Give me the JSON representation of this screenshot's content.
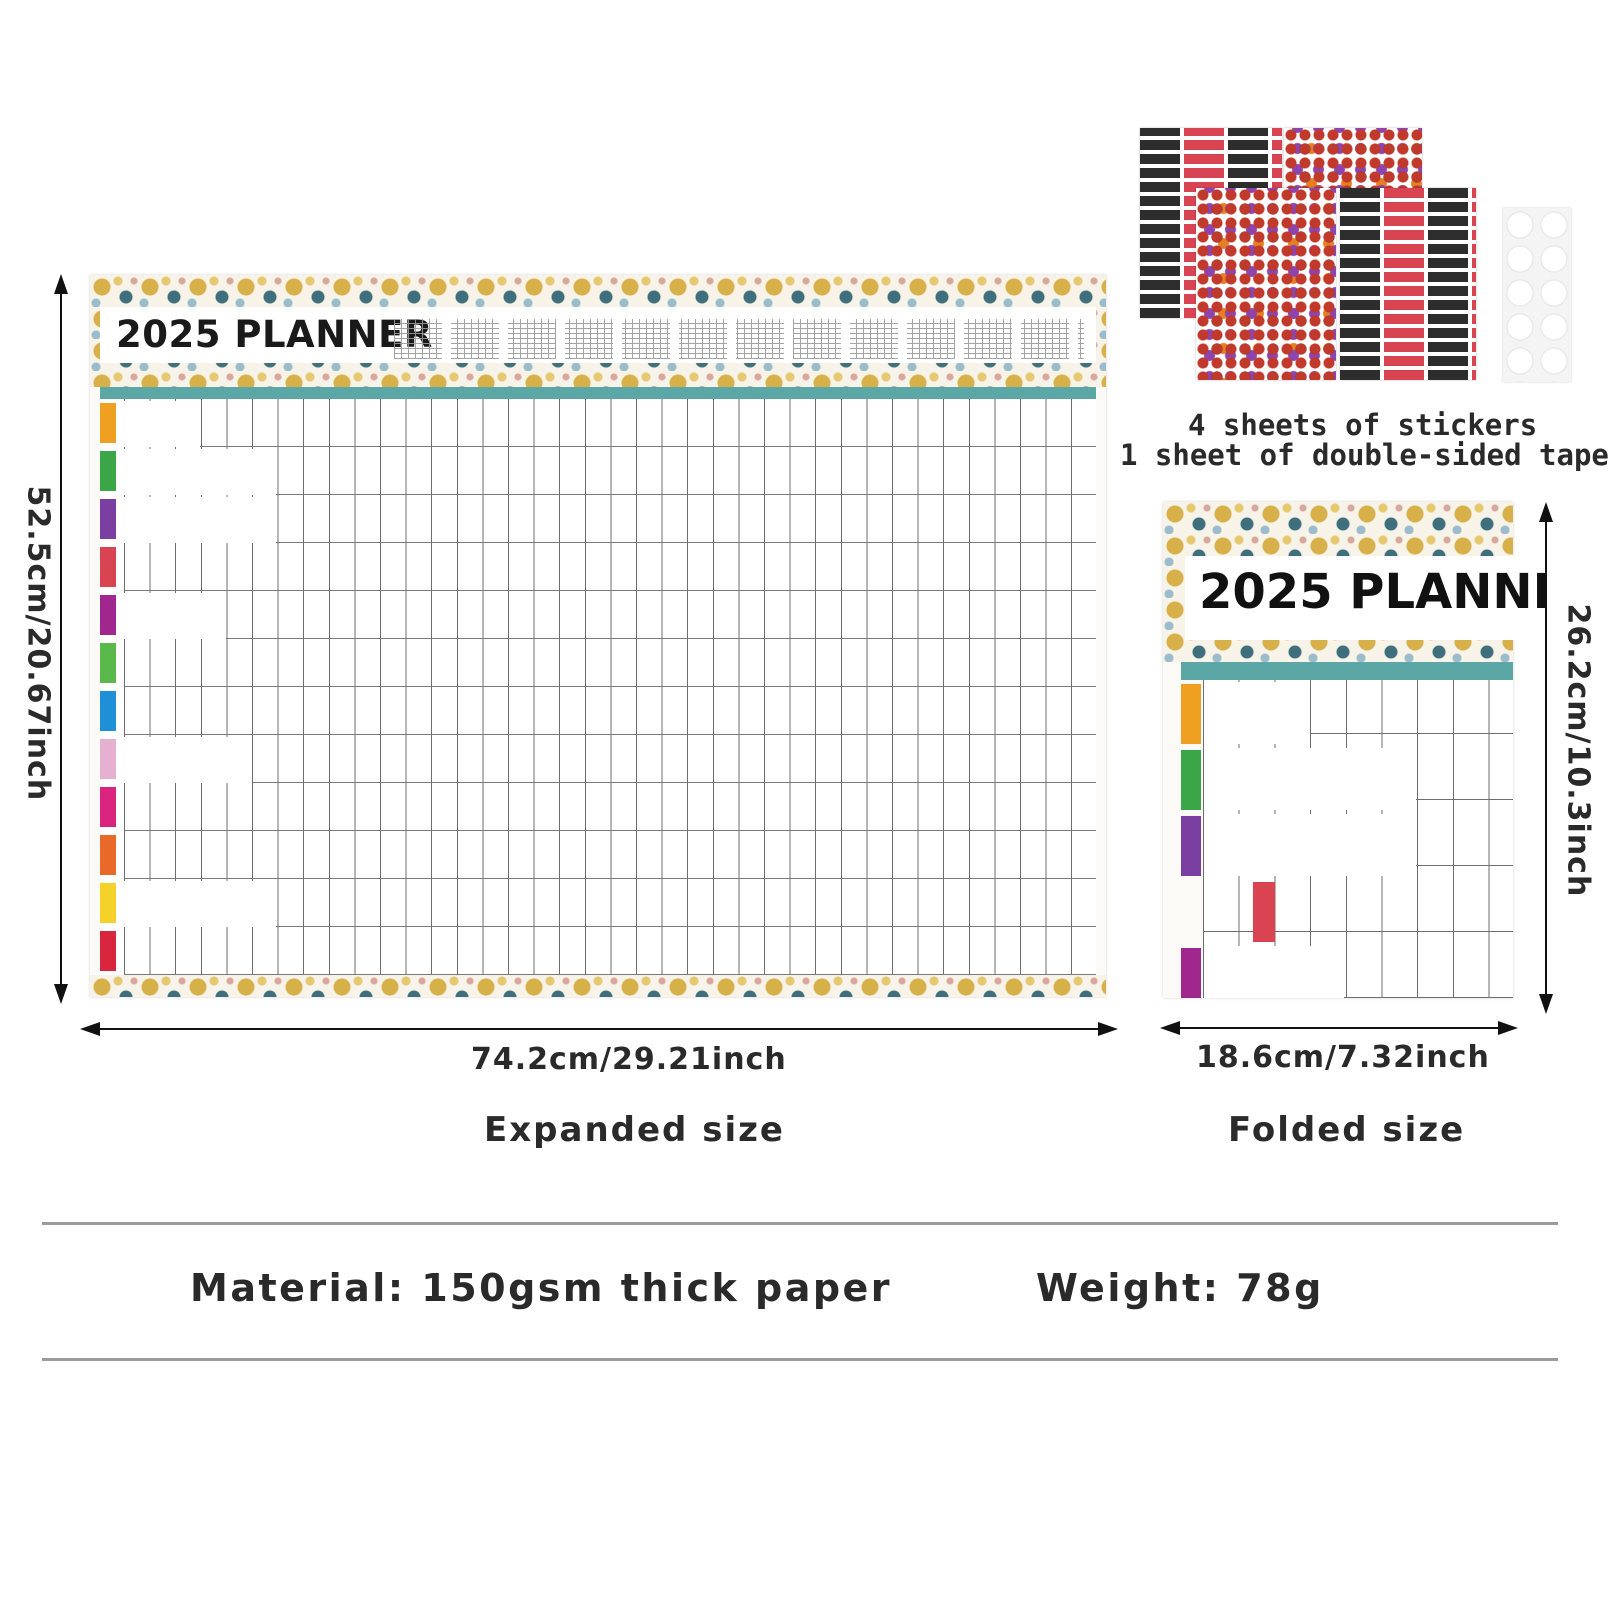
{
  "planner": {
    "title": "2025 PLANNER",
    "folded_title": "2025 PLANNI",
    "tab_colors": [
      "#f0a020",
      "#3aa648",
      "#7a3fa0",
      "#d94452",
      "#a0278e",
      "#5bb84a",
      "#1f8fd8",
      "#e6b0d0",
      "#d9237d",
      "#e8692a",
      "#f5d22a",
      "#d7263d"
    ]
  },
  "stickers": {
    "line1": "4 sheets of stickers",
    "line2": "1 sheet of double-sided tape"
  },
  "expanded": {
    "height_label": "52.5cm/20.67inch",
    "width_label": "74.2cm/29.21inch",
    "caption": "Expanded size"
  },
  "folded": {
    "height_label": "26.2cm/10.3inch",
    "width_label": "18.6cm/7.32inch",
    "caption": "Folded size"
  },
  "specs": {
    "material": "Material: 150gsm thick paper",
    "weight": "Weight: 78g"
  },
  "colors": {
    "header_teal": "#5aa7a5",
    "text": "#2a2a2a",
    "rule": "#9c9c9c"
  }
}
